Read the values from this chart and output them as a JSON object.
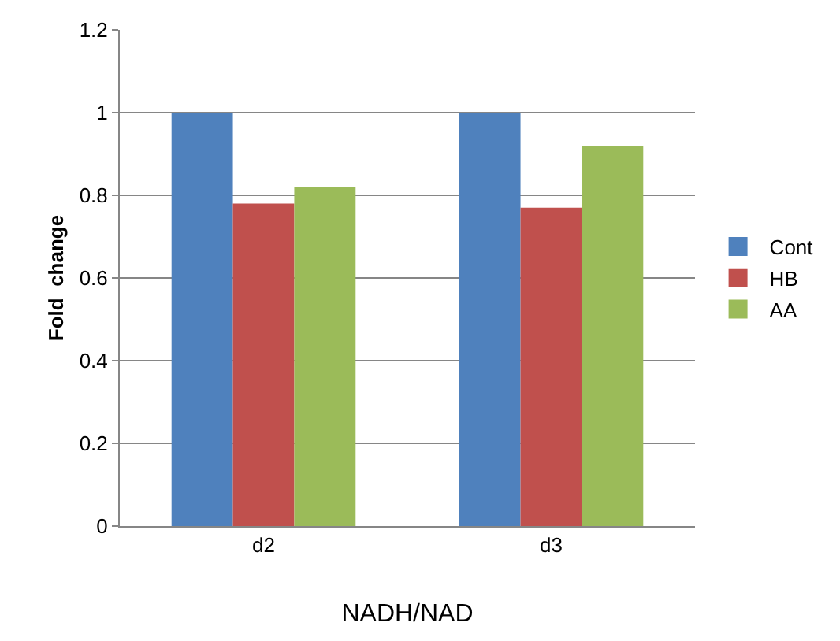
{
  "chart_data": {
    "type": "bar",
    "xlabel": "NADH/NAD",
    "ylabel": "Fold  change",
    "categories": [
      "d2",
      "d3"
    ],
    "series": [
      {
        "name": "Cont",
        "color": "#4f81bd",
        "values": [
          1,
          1
        ]
      },
      {
        "name": "HB",
        "color": "#c0504d",
        "values": [
          0.78,
          0.77
        ]
      },
      {
        "name": "AA",
        "color": "#9bbb59",
        "values": [
          0.82,
          0.92
        ]
      }
    ],
    "ylim": [
      0,
      1.2
    ],
    "yticks": [
      0,
      0.2,
      0.4,
      0.6,
      0.8,
      1,
      1.2
    ],
    "grid": "y",
    "legend": "right"
  }
}
